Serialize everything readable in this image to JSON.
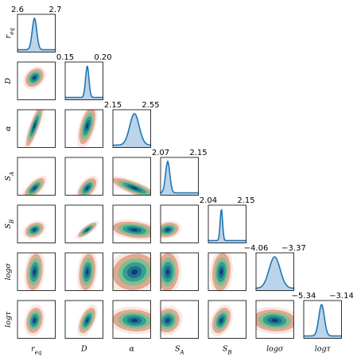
{
  "chart_data": {
    "type": "corner",
    "parameters": [
      {
        "label": "r_eq",
        "text": "r",
        "sub": "eq",
        "range": [
          2.6,
          2.7
        ],
        "range_labels": [
          "2.6",
          "2.7"
        ],
        "mode": 2.645,
        "sd": 0.006
      },
      {
        "label": "D",
        "text": "D",
        "sub": "",
        "range": [
          0.15,
          0.2
        ],
        "range_labels": [
          "0.15",
          "0.20"
        ],
        "mode": 0.1792,
        "sd": 0.0022
      },
      {
        "label": "α",
        "text": "α",
        "sub": "",
        "range": [
          2.15,
          2.55
        ],
        "range_labels": [
          "2.15",
          "2.55"
        ],
        "mode": 2.378,
        "sd": 0.05
      },
      {
        "label": "S_A",
        "text": "S",
        "sub": "A",
        "range": [
          2.07,
          2.15
        ],
        "range_labels": [
          "2.07",
          "2.15"
        ],
        "mode": 2.085,
        "sd": 0.0045
      },
      {
        "label": "S_B",
        "text": "S",
        "sub": "B",
        "range": [
          2.04,
          2.15
        ],
        "range_labels": [
          "2.04",
          "2.15"
        ],
        "mode": 2.078,
        "sd": 0.0035
      },
      {
        "label": "logσ",
        "text": "logσ",
        "sub": "",
        "range": [
          -4.06,
          -3.37
        ],
        "range_labels": [
          "−4.06",
          "−3.37"
        ],
        "mode": -3.72,
        "sd": 0.1
      },
      {
        "label": "logτ",
        "text": "logτ",
        "sub": "",
        "range": [
          -5.34,
          -3.14
        ],
        "range_labels": [
          "−5.34",
          "−3.14"
        ],
        "mode": -4.3,
        "sd": 0.16
      }
    ],
    "density_colors": [
      "#f2d5cb",
      "#e0a48c",
      "#7bbf8e",
      "#2f9c94",
      "#1c6f8c",
      "#0d3b6e"
    ],
    "marginal_color": "#1f77b4",
    "marginal_fill": "#bcd4ea",
    "grid": false
  }
}
